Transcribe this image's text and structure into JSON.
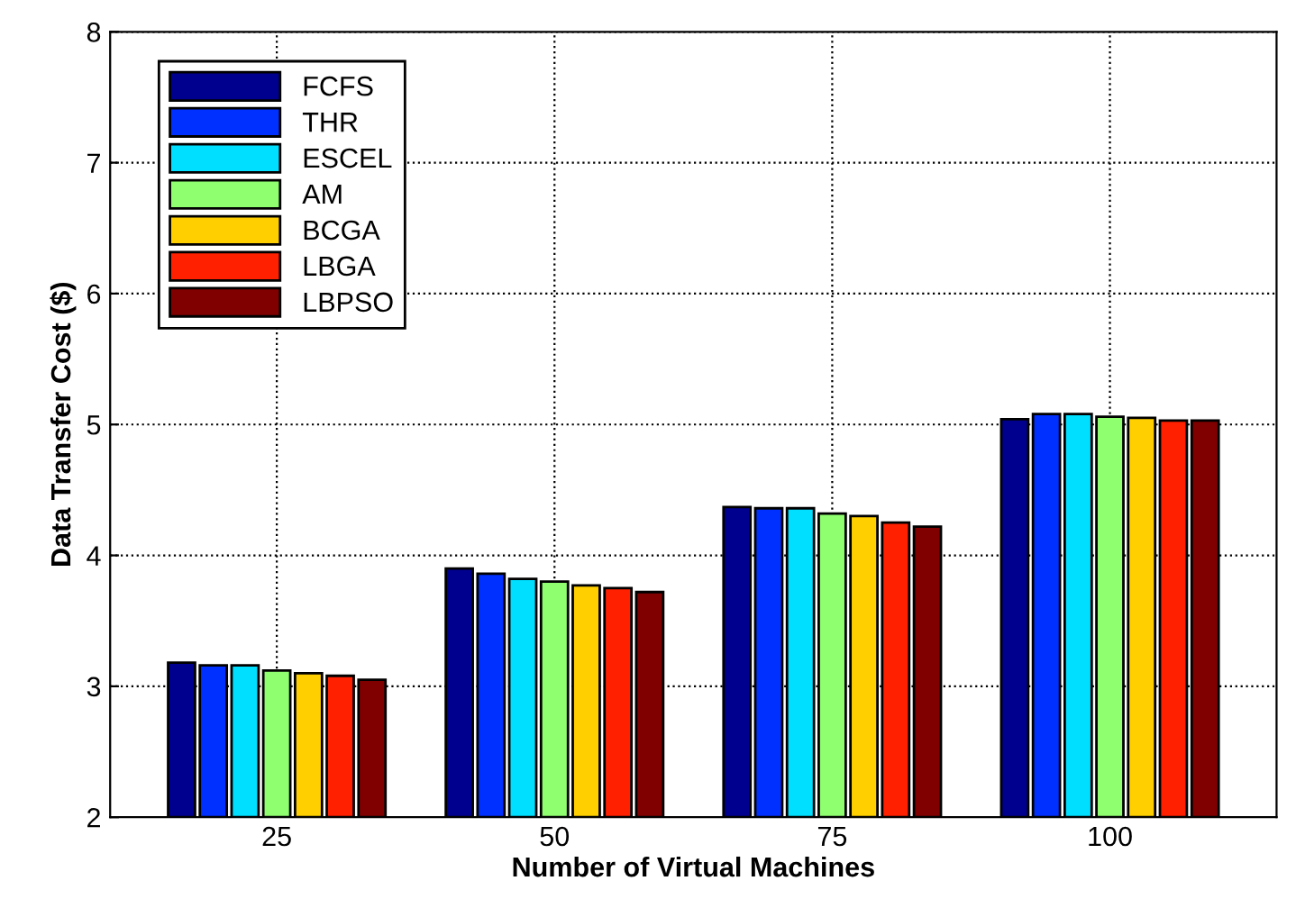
{
  "chart_data": {
    "type": "bar",
    "xlabel": "Number of Virtual Machines",
    "ylabel": "Data Transfer Cost ($)",
    "categories": [
      "25",
      "50",
      "75",
      "100"
    ],
    "series": [
      {
        "name": "FCFS",
        "color": "#00008f",
        "values": [
          3.18,
          3.9,
          4.37,
          5.04
        ]
      },
      {
        "name": "THR",
        "color": "#0030ff",
        "values": [
          3.16,
          3.86,
          4.36,
          5.08
        ]
      },
      {
        "name": "ESCEL",
        "color": "#00dfff",
        "values": [
          3.16,
          3.82,
          4.36,
          5.08
        ]
      },
      {
        "name": "AM",
        "color": "#8fff70",
        "values": [
          3.12,
          3.8,
          4.32,
          5.06
        ]
      },
      {
        "name": "BCGA",
        "color": "#ffcf00",
        "values": [
          3.1,
          3.77,
          4.3,
          5.05
        ]
      },
      {
        "name": "LBGA",
        "color": "#ff2000",
        "values": [
          3.08,
          3.75,
          4.25,
          5.03
        ]
      },
      {
        "name": "LBPSO",
        "color": "#800000",
        "values": [
          3.05,
          3.72,
          4.22,
          5.03
        ]
      }
    ],
    "ylim": [
      2,
      8
    ],
    "yticks": [
      2,
      3,
      4,
      5,
      6,
      7,
      8
    ],
    "grid": true,
    "line_style": "dotted",
    "legend": "top left"
  }
}
